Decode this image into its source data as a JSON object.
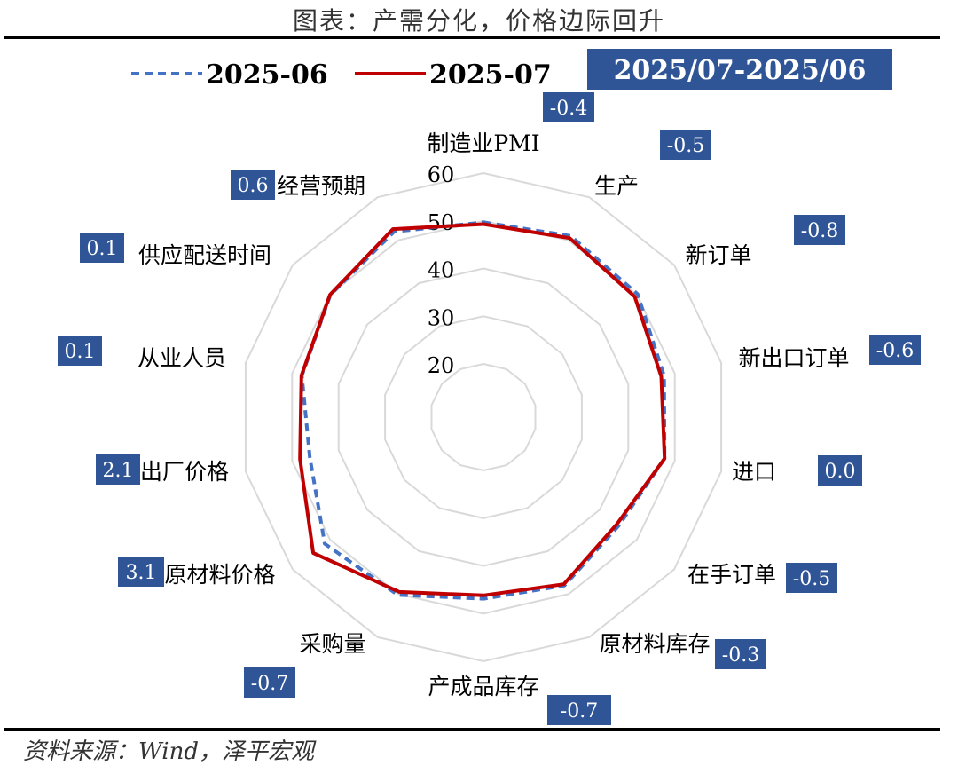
{
  "page": {
    "title": "图表：产需分化，价格边际回升",
    "source": "资料来源：Wind，泽平宏观"
  },
  "colors": {
    "series_2025_06": "#4472c4",
    "series_2025_07": "#c00000",
    "diff_box": "#2f5597",
    "grid": "#d9d9d9"
  },
  "chart_data": {
    "type": "radar",
    "categories": [
      "制造业PMI",
      "生产",
      "新订单",
      "新出口订单",
      "进口",
      "在手订单",
      "原材料库存",
      "产成品库存",
      "采购量",
      "原材料价格",
      "出厂价格",
      "从业人员",
      "供应配送时间",
      "经营预期"
    ],
    "rlim": [
      20,
      60
    ],
    "ticks": [
      "20",
      "30",
      "40",
      "50",
      "60"
    ],
    "series": [
      {
        "name": "2025-06",
        "style": "dashed",
        "values": [
          49.7,
          51.0,
          50.2,
          47.7,
          47.8,
          45.2,
          48.0,
          46.9,
          50.2,
          51.4,
          46.2,
          47.9,
          49.9,
          52.0
        ]
      },
      {
        "name": "2025-07",
        "style": "solid",
        "values": [
          49.3,
          50.5,
          49.4,
          47.1,
          47.8,
          44.7,
          47.7,
          46.2,
          49.5,
          54.5,
          48.3,
          48.0,
          50.0,
          52.6
        ]
      }
    ],
    "diff_header": "2025/07-2025/06",
    "diffs": [
      "-0.4",
      "-0.5",
      "-0.8",
      "-0.6",
      "0.0",
      "-0.5",
      "-0.3",
      "-0.7",
      "-0.7",
      "3.1",
      "2.1",
      "0.1",
      "0.1",
      "0.6"
    ],
    "grid": true,
    "legend": "top-left"
  }
}
